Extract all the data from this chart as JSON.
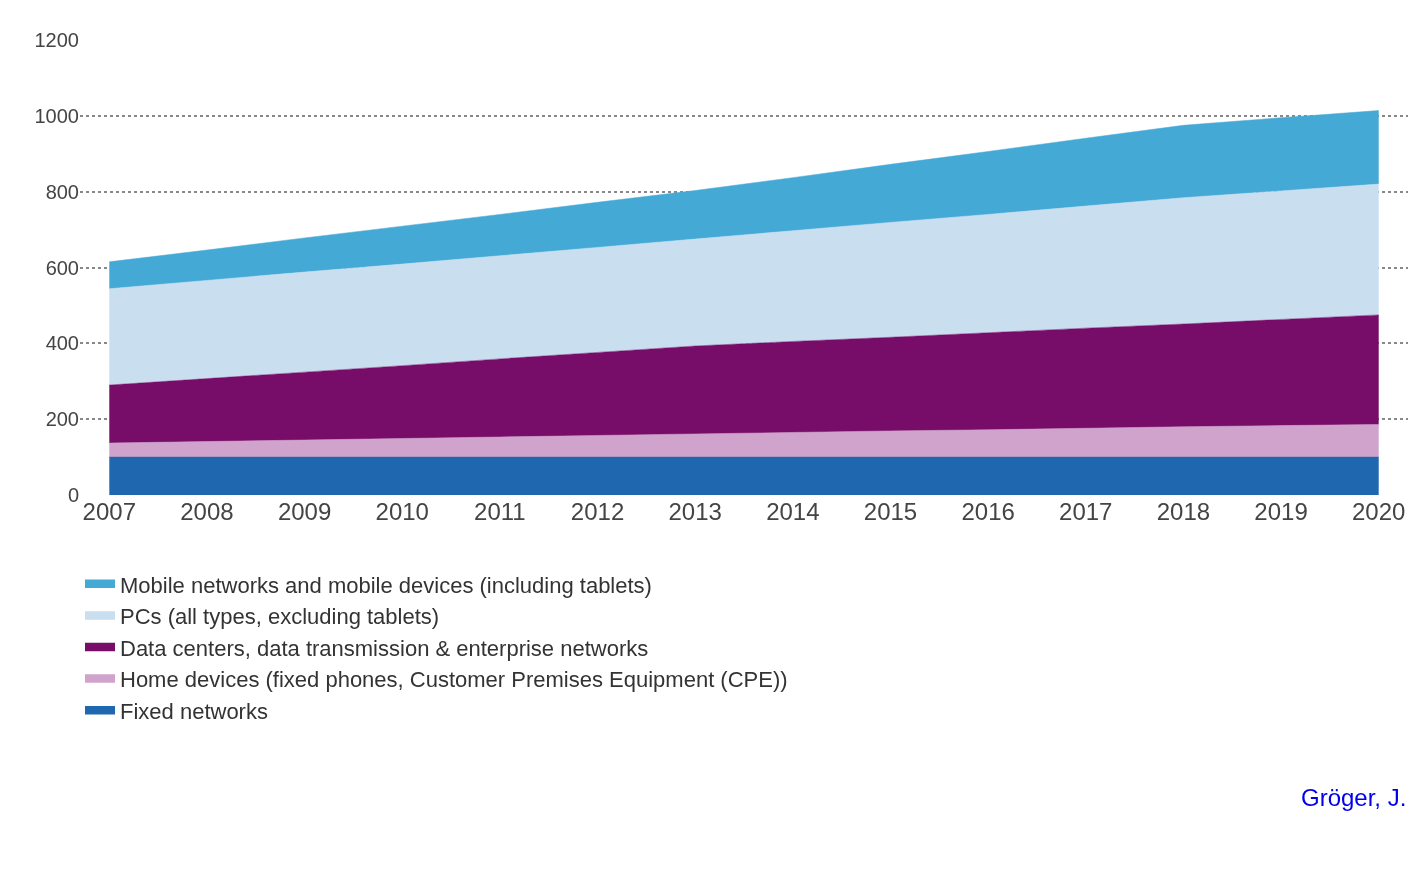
{
  "chart_data": {
    "type": "area",
    "stacked": true,
    "categories": [
      "2007",
      "2008",
      "2009",
      "2010",
      "2011",
      "2012",
      "2013",
      "2014",
      "2015",
      "2016",
      "2017",
      "2018",
      "2019",
      "2020"
    ],
    "series": [
      {
        "name": "Fixed networks",
        "color": "#1f68b0",
        "values": [
          100,
          100,
          100,
          100,
          100,
          100,
          100,
          100,
          100,
          100,
          100,
          100,
          100,
          100
        ]
      },
      {
        "name": "Home devices (fixed phones, Customer Premises Equipment (CPE))",
        "color": "#cfa3cb",
        "values": [
          37,
          41,
          45,
          49,
          53,
          57,
          61,
          65,
          69,
          72,
          76,
          80,
          83,
          86
        ]
      },
      {
        "name": "Data centers, data transmission & enterprise networks",
        "color": "#770d68",
        "values": [
          153,
          166,
          179,
          192,
          206,
          219,
          232,
          240,
          247,
          256,
          264,
          271,
          280,
          289
        ]
      },
      {
        "name": "PCs (all types, excluding tablets)",
        "color": "#c9dff0",
        "values": [
          254,
          259,
          264,
          268,
          272,
          277,
          282,
          292,
          303,
          312,
          322,
          333,
          339,
          345
        ]
      },
      {
        "name": "Mobile networks and mobile devices (including tablets)",
        "color": "#45a9d6",
        "values": [
          71,
          80,
          90,
          100,
          109,
          119,
          128,
          140,
          153,
          166,
          179,
          191,
          193,
          194
        ]
      }
    ],
    "ylim": [
      0,
      1200
    ],
    "yticks": [
      0,
      200,
      400,
      600,
      800,
      1000,
      1200
    ],
    "grid": "y",
    "legend": "bottom",
    "marker": "none",
    "annotations": [
      "Gröger, J."
    ]
  }
}
